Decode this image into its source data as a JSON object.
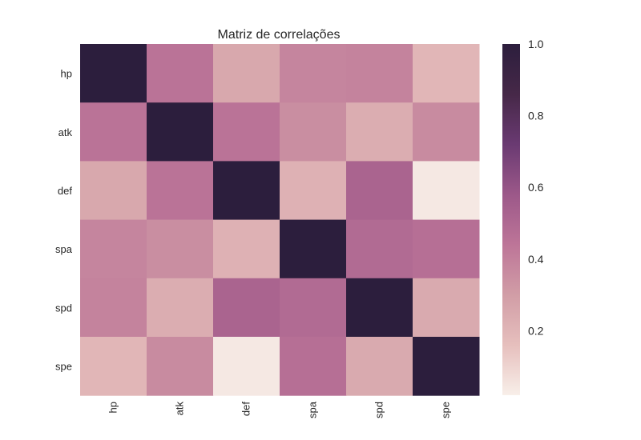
{
  "chart_data": {
    "type": "heatmap",
    "title": "Matriz de correlações",
    "rows": [
      "hp",
      "atk",
      "def",
      "spa",
      "spd",
      "spe"
    ],
    "columns": [
      "hp",
      "atk",
      "def",
      "spa",
      "spd",
      "spe"
    ],
    "values": [
      [
        1.0,
        0.44,
        0.24,
        0.37,
        0.38,
        0.18
      ],
      [
        0.44,
        1.0,
        0.44,
        0.34,
        0.22,
        0.35
      ],
      [
        0.24,
        0.44,
        1.0,
        0.2,
        0.51,
        0.02
      ],
      [
        0.37,
        0.34,
        0.2,
        1.0,
        0.48,
        0.46
      ],
      [
        0.38,
        0.22,
        0.51,
        0.48,
        1.0,
        0.23
      ],
      [
        0.18,
        0.35,
        0.02,
        0.46,
        0.23,
        1.0
      ]
    ],
    "colorbar": {
      "range": [
        0.0,
        1.0
      ],
      "ticks": [
        0.2,
        0.4,
        0.6,
        0.8,
        1.0
      ],
      "tick_labels": [
        "0.2",
        "0.4",
        "0.6",
        "0.8",
        "1.0"
      ],
      "colors": [
        "#f8efe9",
        "#e6bfbd",
        "#d19da6",
        "#bd7598",
        "#9c5889",
        "#6a3a72",
        "#462848",
        "#2c1e3d"
      ]
    },
    "grid": false
  }
}
